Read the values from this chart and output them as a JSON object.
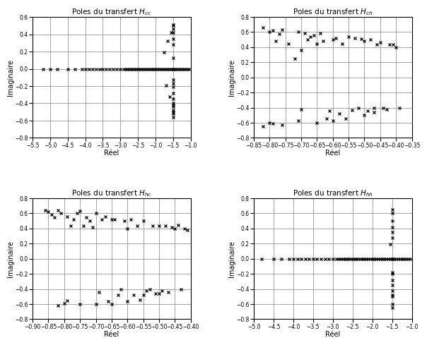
{
  "hcc": {
    "title": "Poles du transfert H",
    "title_sub": "cc",
    "xlim": [
      -5.5,
      -1.0
    ],
    "ylim": [
      -0.8,
      0.6
    ],
    "xticks": [
      -5.5,
      -5.0,
      -4.5,
      -4.0,
      -3.5,
      -3.0,
      -2.5,
      -2.0,
      -1.5,
      -1.0
    ],
    "yticks": [
      -0.8,
      -0.6,
      -0.4,
      -0.2,
      0.0,
      0.2,
      0.4,
      0.6
    ],
    "xlabel": "Réel",
    "ylabel": "Imaginaire",
    "real": [
      -5.2,
      -5.0,
      -4.8,
      -4.5,
      -4.3,
      -4.1,
      -4.0,
      -3.9,
      -3.8,
      -3.7,
      -3.6,
      -3.5,
      -3.4,
      -3.3,
      -3.2,
      -3.1,
      -3.0,
      -2.9,
      -2.85,
      -2.8,
      -2.75,
      -2.7,
      -2.65,
      -2.6,
      -2.55,
      -2.5,
      -2.45,
      -2.4,
      -2.35,
      -2.3,
      -2.25,
      -2.2,
      -2.15,
      -2.1,
      -2.05,
      -2.0,
      -1.95,
      -1.9,
      -1.85,
      -1.8,
      -1.75,
      -1.7,
      -1.65,
      -1.6,
      -1.55,
      -1.5,
      -1.45,
      -1.4,
      -1.35,
      -1.3,
      -1.25,
      -1.2,
      -1.15,
      -1.1,
      -1.05,
      -1.75,
      -1.7,
      -1.65,
      -1.6,
      -1.55,
      -1.5,
      -1.5,
      -1.5,
      -1.5,
      -1.5,
      -1.5,
      -1.5
    ],
    "imag": [
      0.0,
      0.0,
      0.0,
      0.0,
      0.0,
      0.0,
      0.0,
      0.0,
      0.0,
      0.0,
      0.0,
      0.0,
      0.0,
      0.0,
      0.0,
      0.0,
      0.0,
      0.0,
      0.0,
      0.0,
      0.0,
      0.0,
      0.0,
      0.0,
      0.0,
      0.0,
      0.0,
      0.0,
      0.0,
      0.0,
      0.0,
      0.0,
      0.0,
      0.0,
      0.0,
      0.0,
      0.0,
      0.0,
      0.0,
      0.0,
      0.0,
      0.0,
      0.0,
      0.0,
      0.0,
      0.0,
      0.0,
      0.0,
      0.0,
      0.0,
      0.0,
      0.0,
      0.0,
      0.0,
      0.0,
      0.19,
      -0.19,
      0.32,
      -0.32,
      0.42,
      -0.42,
      0.5,
      -0.5,
      0.28,
      -0.28,
      0.35,
      -0.35
    ],
    "real2": [
      -1.5,
      -1.5,
      -1.5,
      -1.5,
      -1.5,
      -1.5,
      -1.5,
      -1.5,
      -1.5,
      -1.5,
      -1.5,
      -1.5,
      -1.5
    ],
    "imag2": [
      0.51,
      0.46,
      0.42,
      -0.4,
      -0.44,
      -0.48,
      -0.52,
      -0.56,
      0.13,
      -0.13,
      -0.17,
      -0.21,
      0.0
    ]
  },
  "hch": {
    "title": "Poles du transfert H",
    "title_sub": "ch",
    "xlim": [
      -0.85,
      -0.35
    ],
    "ylim": [
      -0.8,
      0.8
    ],
    "xticks": [
      -0.85,
      -0.8,
      -0.75,
      -0.7,
      -0.65,
      -0.6,
      -0.55,
      -0.5,
      -0.45,
      -0.4,
      -0.35
    ],
    "yticks": [
      -0.8,
      -0.6,
      -0.4,
      -0.2,
      0.0,
      0.2,
      0.4,
      0.6,
      0.8
    ],
    "xlabel": "Réel",
    "ylabel": "Imaginaire",
    "real": [
      -0.82,
      -0.82,
      -0.8,
      -0.8,
      -0.79,
      -0.79,
      -0.78,
      -0.77,
      -0.76,
      -0.76,
      -0.74,
      -0.72,
      -0.71,
      -0.71,
      -0.7,
      -0.7,
      -0.69,
      -0.68,
      -0.67,
      -0.66,
      -0.65,
      -0.65,
      -0.64,
      -0.63,
      -0.62,
      -0.61,
      -0.6,
      -0.6,
      -0.59,
      -0.58,
      -0.57,
      -0.56,
      -0.55,
      -0.54,
      -0.53,
      -0.52,
      -0.51,
      -0.5,
      -0.5,
      -0.49,
      -0.48,
      -0.47,
      -0.47,
      -0.46,
      -0.45,
      -0.44,
      -0.43,
      -0.42,
      -0.41,
      -0.4,
      -0.39
    ],
    "imag": [
      0.66,
      -0.65,
      0.6,
      -0.6,
      0.62,
      -0.61,
      0.48,
      0.58,
      0.63,
      -0.63,
      0.45,
      0.25,
      0.6,
      -0.57,
      0.36,
      -0.42,
      0.59,
      0.5,
      0.54,
      0.56,
      0.45,
      -0.6,
      0.59,
      0.48,
      -0.54,
      -0.44,
      0.5,
      -0.57,
      0.52,
      -0.48,
      0.45,
      -0.54,
      0.54,
      -0.43,
      0.52,
      -0.4,
      0.51,
      0.48,
      -0.5,
      -0.44,
      0.5,
      -0.46,
      -0.4,
      0.44,
      0.46,
      -0.4,
      -0.42,
      0.44,
      0.44,
      0.4,
      -0.4
    ],
    "real2": [],
    "imag2": []
  },
  "hhc": {
    "title": "Poles du transfert H",
    "title_sub": "hc",
    "xlim": [
      -0.9,
      -0.4
    ],
    "ylim": [
      -0.8,
      0.8
    ],
    "xticks": [
      -0.9,
      -0.85,
      -0.8,
      -0.75,
      -0.7,
      -0.65,
      -0.6,
      -0.55,
      -0.5,
      -0.45,
      -0.4
    ],
    "yticks": [
      -0.8,
      -0.6,
      -0.4,
      -0.2,
      0.0,
      0.2,
      0.4,
      0.6,
      0.8
    ],
    "xlabel": "Réel",
    "ylabel": "Imaginaire",
    "real": [
      -0.86,
      -0.85,
      -0.84,
      -0.83,
      -0.82,
      -0.82,
      -0.81,
      -0.8,
      -0.79,
      -0.79,
      -0.78,
      -0.77,
      -0.76,
      -0.75,
      -0.75,
      -0.74,
      -0.73,
      -0.72,
      -0.71,
      -0.7,
      -0.7,
      -0.69,
      -0.68,
      -0.67,
      -0.66,
      -0.65,
      -0.65,
      -0.64,
      -0.63,
      -0.62,
      -0.61,
      -0.6,
      -0.6,
      -0.59,
      -0.58,
      -0.57,
      -0.56,
      -0.55,
      -0.55,
      -0.54,
      -0.53,
      -0.52,
      -0.51,
      -0.5,
      -0.5,
      -0.49,
      -0.48,
      -0.47,
      -0.46,
      -0.45,
      -0.44,
      -0.43,
      -0.42,
      -0.41
    ],
    "imag": [
      0.64,
      0.62,
      0.59,
      0.55,
      0.64,
      -0.62,
      0.6,
      -0.59,
      0.56,
      -0.55,
      0.44,
      0.52,
      0.6,
      -0.6,
      0.63,
      0.44,
      0.55,
      0.5,
      0.42,
      -0.6,
      0.6,
      -0.44,
      0.52,
      0.56,
      -0.56,
      0.52,
      -0.6,
      0.52,
      -0.48,
      -0.4,
      0.5,
      0.4,
      -0.56,
      0.52,
      -0.48,
      0.44,
      -0.54,
      0.5,
      -0.48,
      -0.42,
      -0.4,
      0.44,
      -0.46,
      0.44,
      -0.46,
      -0.42,
      0.44,
      -0.44,
      0.42,
      0.4,
      0.45,
      -0.4,
      0.4,
      0.38
    ],
    "real2": [],
    "imag2": []
  },
  "hhh": {
    "title": "Poles du transfert H",
    "title_sub": "hh",
    "xlim": [
      -5.0,
      -1.0
    ],
    "ylim": [
      -0.8,
      0.8
    ],
    "xticks": [
      -5.0,
      -4.5,
      -4.0,
      -3.5,
      -3.0,
      -2.5,
      -2.0,
      -1.5,
      -1.0
    ],
    "yticks": [
      -0.8,
      -0.6,
      -0.4,
      -0.2,
      0.0,
      0.2,
      0.4,
      0.6,
      0.8
    ],
    "xlabel": "Réel",
    "ylabel": "Imaginaire",
    "real": [
      -4.8,
      -4.5,
      -4.3,
      -4.1,
      -4.0,
      -3.9,
      -3.8,
      -3.7,
      -3.6,
      -3.5,
      -3.4,
      -3.3,
      -3.2,
      -3.1,
      -3.0,
      -2.9,
      -2.85,
      -2.8,
      -2.75,
      -2.7,
      -2.65,
      -2.6,
      -2.55,
      -2.5,
      -2.45,
      -2.4,
      -2.35,
      -2.3,
      -2.25,
      -2.2,
      -2.15,
      -2.1,
      -2.05,
      -2.0,
      -1.95,
      -1.9,
      -1.85,
      -1.8,
      -1.75,
      -1.7,
      -1.65,
      -1.6,
      -1.55,
      -1.5,
      -1.45,
      -1.4,
      -1.35,
      -1.3,
      -1.25,
      -1.2,
      -1.15,
      -1.1,
      -1.05,
      -1.55,
      -1.5,
      -1.5,
      -1.5,
      -1.5,
      -1.5,
      -1.5,
      -1.5
    ],
    "imag": [
      0.0,
      0.0,
      0.0,
      0.0,
      0.0,
      0.0,
      0.0,
      0.0,
      0.0,
      0.0,
      0.0,
      0.0,
      0.0,
      0.0,
      0.0,
      0.0,
      0.0,
      0.0,
      0.0,
      0.0,
      0.0,
      0.0,
      0.0,
      0.0,
      0.0,
      0.0,
      0.0,
      0.0,
      0.0,
      0.0,
      0.0,
      0.0,
      0.0,
      0.0,
      0.0,
      0.0,
      0.0,
      0.0,
      0.0,
      0.0,
      0.0,
      0.0,
      0.0,
      0.0,
      0.0,
      0.0,
      0.0,
      0.0,
      0.0,
      0.0,
      0.0,
      0.0,
      0.0,
      0.19,
      0.28,
      0.35,
      0.42,
      0.5,
      0.6,
      0.65,
      -0.2
    ],
    "real2": [
      -1.5,
      -1.5,
      -1.5,
      -1.5,
      -1.5,
      -1.5,
      -1.5,
      -1.5,
      -1.5
    ],
    "imag2": [
      -0.28,
      -0.35,
      -0.42,
      -0.5,
      -0.6,
      -0.65,
      -0.48,
      -0.18,
      0.0
    ]
  }
}
